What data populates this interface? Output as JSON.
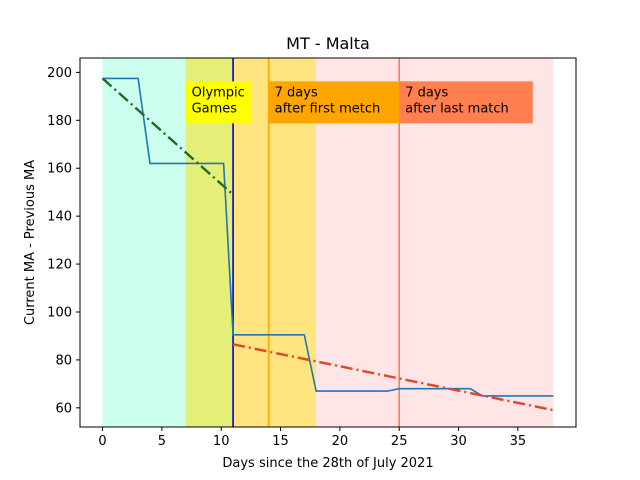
{
  "chart_data": {
    "type": "line",
    "title": "MT - Malta",
    "xlabel": "Days since the 28th of July 2021",
    "ylabel": "Current MA - Previous MA",
    "xlim": [
      -1.9,
      39.9
    ],
    "ylim": [
      52,
      206
    ],
    "xticks": [
      0,
      5,
      10,
      15,
      20,
      25,
      30,
      35
    ],
    "yticks": [
      60,
      80,
      100,
      120,
      140,
      160,
      180,
      200
    ],
    "grid": false,
    "shaded_regions": [
      {
        "x0": 0,
        "x1": 7,
        "color": "#ccffee"
      },
      {
        "x0": 7,
        "x1": 11,
        "color": "#e5ee77"
      },
      {
        "x0": 11,
        "x1": 18,
        "color": "#ffe480"
      },
      {
        "x0": 18,
        "x1": 38,
        "color": "#ffe5e5"
      }
    ],
    "vertical_lines": [
      {
        "x": 11,
        "color": "#0000cc"
      },
      {
        "x": 14,
        "color": "#ffa500"
      },
      {
        "x": 25,
        "color": "#ff7f50"
      }
    ],
    "series": [
      {
        "style": "solid",
        "color": "#1f77b4",
        "x": [
          0,
          3,
          4,
          10,
          10.2,
          11,
          17,
          18,
          24,
          25,
          31,
          32,
          38
        ],
        "y": [
          197.5,
          197.5,
          162,
          162,
          162,
          90.5,
          90.5,
          67,
          67,
          68,
          68,
          65,
          65
        ]
      },
      {
        "style": "dashdot",
        "color": "#1a6b2a",
        "x": [
          0,
          11
        ],
        "y": [
          197.5,
          149
        ]
      },
      {
        "style": "dashdot",
        "color": "#e0442a",
        "x": [
          11,
          38
        ],
        "y": [
          86.5,
          59
        ]
      }
    ],
    "annotations": [
      {
        "text": [
          "Olympic",
          "Games"
        ],
        "x": 7,
        "y": 195,
        "bg": "#ffff00"
      },
      {
        "text": [
          "7 days",
          "after first metch"
        ],
        "x": 14,
        "y": 195,
        "bg": "#ffa500"
      },
      {
        "text": [
          "7 days",
          "after last match"
        ],
        "x": 25,
        "y": 195,
        "bg": "#ff7f50"
      }
    ]
  }
}
